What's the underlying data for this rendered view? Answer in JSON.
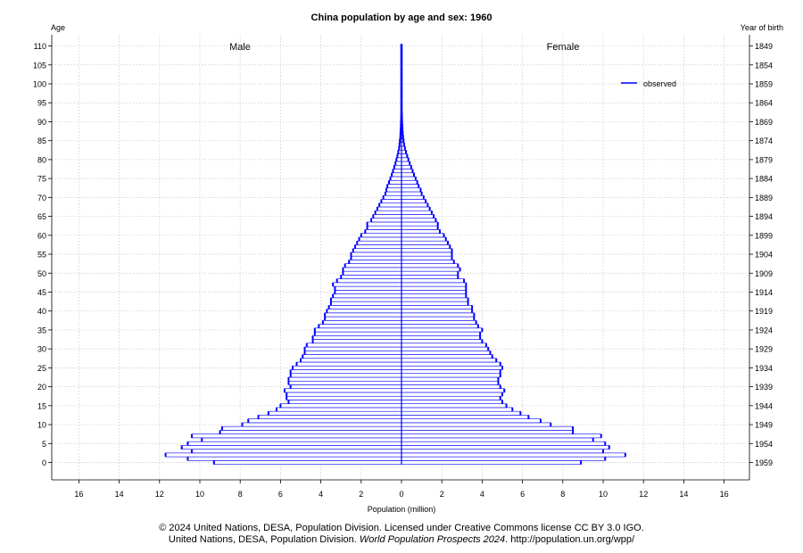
{
  "chart_data": {
    "type": "bar",
    "title": "China population by age and sex: 1960",
    "left_axis_label": "Age",
    "right_axis_label": "Year of birth",
    "xlabel": "Population (million)",
    "male_label": "Male",
    "female_label": "Female",
    "legend": {
      "label": "observed",
      "position": "top-right",
      "color": "#0000ff"
    },
    "grid": true,
    "xlim": [
      -16,
      16
    ],
    "ylim": [
      0,
      110
    ],
    "x_ticks": [
      -16,
      -14,
      -12,
      -10,
      -8,
      -6,
      -4,
      -2,
      0,
      2,
      4,
      6,
      8,
      10,
      12,
      14,
      16
    ],
    "x_tick_labels": [
      "16",
      "14",
      "12",
      "10",
      "8",
      "6",
      "4",
      "2",
      "0",
      "2",
      "4",
      "6",
      "8",
      "10",
      "12",
      "14",
      "16"
    ],
    "age_ticks": [
      0,
      5,
      10,
      15,
      20,
      25,
      30,
      35,
      40,
      45,
      50,
      55,
      60,
      65,
      70,
      75,
      80,
      85,
      90,
      95,
      100,
      105,
      110
    ],
    "birth_year_ticks": [
      "1959",
      "1954",
      "1949",
      "1944",
      "1939",
      "1934",
      "1929",
      "1924",
      "1919",
      "1914",
      "1909",
      "1904",
      "1899",
      "1894",
      "1889",
      "1884",
      "1879",
      "1874",
      "1869",
      "1864",
      "1859",
      "1854",
      "1849"
    ],
    "ages": [
      0,
      1,
      2,
      3,
      4,
      5,
      6,
      7,
      8,
      9,
      10,
      11,
      12,
      13,
      14,
      15,
      16,
      17,
      18,
      19,
      20,
      21,
      22,
      23,
      24,
      25,
      26,
      27,
      28,
      29,
      30,
      31,
      32,
      33,
      34,
      35,
      36,
      37,
      38,
      39,
      40,
      41,
      42,
      43,
      44,
      45,
      46,
      47,
      48,
      49,
      50,
      51,
      52,
      53,
      54,
      55,
      56,
      57,
      58,
      59,
      60,
      61,
      62,
      63,
      64,
      65,
      66,
      67,
      68,
      69,
      70,
      71,
      72,
      73,
      74,
      75,
      76,
      77,
      78,
      79,
      80,
      81,
      82,
      83,
      84,
      85,
      86,
      87,
      88,
      89,
      90,
      91,
      92,
      93,
      94,
      95,
      96,
      97,
      98,
      99,
      100,
      101,
      102,
      103,
      104,
      105,
      106,
      107,
      108,
      109,
      110
    ],
    "series": [
      {
        "name": "Male",
        "values": [
          9.3,
          10.6,
          11.7,
          10.4,
          10.9,
          10.6,
          9.9,
          10.4,
          9.0,
          8.9,
          7.9,
          7.6,
          7.1,
          6.6,
          6.2,
          6.0,
          5.6,
          5.7,
          5.7,
          5.8,
          5.5,
          5.6,
          5.6,
          5.5,
          5.5,
          5.4,
          5.2,
          5.0,
          4.9,
          4.8,
          4.8,
          4.7,
          4.4,
          4.4,
          4.3,
          4.3,
          4.1,
          3.9,
          3.8,
          3.8,
          3.7,
          3.6,
          3.5,
          3.5,
          3.4,
          3.3,
          3.3,
          3.4,
          3.2,
          3.0,
          2.9,
          2.9,
          2.8,
          2.6,
          2.5,
          2.5,
          2.4,
          2.3,
          2.2,
          2.1,
          2.0,
          1.8,
          1.7,
          1.7,
          1.5,
          1.4,
          1.3,
          1.2,
          1.1,
          1.0,
          0.9,
          0.8,
          0.75,
          0.7,
          0.62,
          0.55,
          0.48,
          0.42,
          0.36,
          0.3,
          0.25,
          0.2,
          0.16,
          0.12,
          0.1,
          0.08,
          0.06,
          0.05,
          0.04,
          0.03,
          0.025,
          0.02,
          0.015,
          0.01,
          0.01,
          0.01,
          0.01,
          0.01,
          0.01,
          0.01,
          0.01,
          0.01,
          0.01,
          0.01,
          0.01,
          0.01,
          0.01,
          0.01,
          0.01,
          0.01,
          0.01
        ]
      },
      {
        "name": "Female",
        "values": [
          8.9,
          10.1,
          11.1,
          10.0,
          10.3,
          10.1,
          9.5,
          9.9,
          8.5,
          8.5,
          7.4,
          6.9,
          6.3,
          5.9,
          5.5,
          5.2,
          5.0,
          4.9,
          5.0,
          5.1,
          4.9,
          4.8,
          4.8,
          4.9,
          4.9,
          5.0,
          4.9,
          4.7,
          4.5,
          4.4,
          4.3,
          4.2,
          4.0,
          3.9,
          3.9,
          4.0,
          3.8,
          3.7,
          3.6,
          3.6,
          3.5,
          3.5,
          3.3,
          3.3,
          3.2,
          3.2,
          3.2,
          3.2,
          3.1,
          2.8,
          2.8,
          2.9,
          2.8,
          2.6,
          2.5,
          2.5,
          2.5,
          2.4,
          2.3,
          2.2,
          2.1,
          1.9,
          1.8,
          1.8,
          1.7,
          1.6,
          1.5,
          1.4,
          1.3,
          1.2,
          1.1,
          1.0,
          0.95,
          0.85,
          0.78,
          0.7,
          0.62,
          0.55,
          0.48,
          0.41,
          0.34,
          0.28,
          0.22,
          0.17,
          0.13,
          0.1,
          0.08,
          0.06,
          0.05,
          0.04,
          0.03,
          0.025,
          0.02,
          0.015,
          0.012,
          0.01,
          0.01,
          0.01,
          0.01,
          0.01,
          0.01,
          0.01,
          0.01,
          0.01,
          0.01,
          0.01,
          0.01,
          0.01,
          0.01,
          0.01,
          0.01
        ]
      }
    ]
  },
  "footer": {
    "line1": "© 2024 United Nations, DESA, Population Division. Licensed under Creative Commons license CC BY 3.0 IGO.",
    "line2_prefix": "United Nations, DESA, Population Division. ",
    "line2_italic": "World Population Prospects 2024",
    "line2_suffix": ". http://population.un.org/wpp/"
  }
}
